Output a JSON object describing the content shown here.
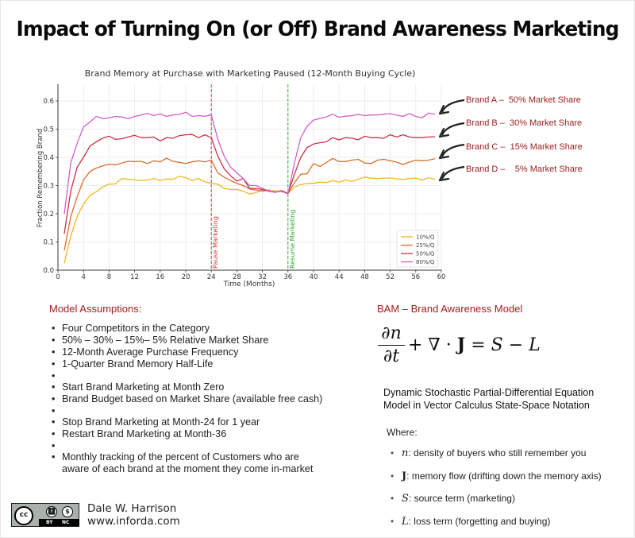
{
  "page": {
    "title": "Impact of Turning On (or Off) Brand Awareness Marketing"
  },
  "chart_data": {
    "type": "line",
    "title": "Brand Memory at Purchase with Marketing Paused (12-Month Buying Cycle)",
    "xlabel": "Time (Months)",
    "ylabel": "Fraction Remembering Brand",
    "xlim": [
      0,
      60
    ],
    "ylim": [
      0.0,
      0.66
    ],
    "xticks": [
      0,
      4,
      8,
      12,
      16,
      20,
      24,
      28,
      32,
      36,
      40,
      44,
      48,
      52,
      56,
      60
    ],
    "yticks": [
      0.0,
      0.1,
      0.2,
      0.3,
      0.4,
      0.5,
      0.6
    ],
    "ytick_labels": [
      "0.0",
      "0.1",
      "0.2",
      "0.3",
      "0.4",
      "0.5",
      "0.6"
    ],
    "grid": true,
    "legend_position": "lower right",
    "x": [
      1,
      2,
      3,
      4,
      5,
      6,
      7,
      8,
      9,
      10,
      11,
      12,
      13,
      14,
      15,
      16,
      17,
      18,
      19,
      20,
      21,
      22,
      23,
      24,
      25,
      26,
      27,
      28,
      29,
      30,
      31,
      32,
      33,
      34,
      35,
      36,
      37,
      38,
      39,
      40,
      41,
      42,
      43,
      44,
      45,
      46,
      47,
      48,
      49,
      50,
      51,
      52,
      53,
      54,
      55,
      56,
      57,
      58,
      59
    ],
    "series": [
      {
        "name": "10%/Q",
        "color": "#f2b824",
        "values": [
          0.025,
          0.12,
          0.19,
          0.235,
          0.265,
          0.278,
          0.295,
          0.305,
          0.306,
          0.325,
          0.322,
          0.32,
          0.318,
          0.32,
          0.325,
          0.318,
          0.323,
          0.322,
          0.333,
          0.328,
          0.318,
          0.325,
          0.313,
          0.308,
          0.305,
          0.29,
          0.286,
          0.286,
          0.28,
          0.27,
          0.275,
          0.285,
          0.28,
          0.282,
          0.278,
          0.272,
          0.295,
          0.303,
          0.308,
          0.308,
          0.312,
          0.31,
          0.318,
          0.312,
          0.32,
          0.315,
          0.322,
          0.33,
          0.326,
          0.325,
          0.326,
          0.327,
          0.324,
          0.322,
          0.325,
          0.326,
          0.32,
          0.328,
          0.322
        ]
      },
      {
        "name": "25%/Q",
        "color": "#dc6d2c",
        "values": [
          0.07,
          0.19,
          0.26,
          0.32,
          0.35,
          0.362,
          0.37,
          0.376,
          0.373,
          0.38,
          0.386,
          0.385,
          0.386,
          0.378,
          0.388,
          0.384,
          0.397,
          0.386,
          0.382,
          0.378,
          0.384,
          0.388,
          0.384,
          0.39,
          0.345,
          0.33,
          0.318,
          0.308,
          0.3,
          0.288,
          0.284,
          0.28,
          0.284,
          0.277,
          0.281,
          0.272,
          0.31,
          0.34,
          0.342,
          0.378,
          0.368,
          0.382,
          0.396,
          0.385,
          0.385,
          0.39,
          0.393,
          0.38,
          0.378,
          0.39,
          0.393,
          0.388,
          0.383,
          0.375,
          0.383,
          0.39,
          0.388,
          0.39,
          0.395
        ]
      },
      {
        "name": "50%/Q",
        "color": "#cc3148",
        "values": [
          0.13,
          0.28,
          0.365,
          0.4,
          0.44,
          0.455,
          0.468,
          0.475,
          0.464,
          0.466,
          0.472,
          0.478,
          0.47,
          0.47,
          0.472,
          0.458,
          0.47,
          0.468,
          0.477,
          0.48,
          0.481,
          0.47,
          0.48,
          0.47,
          0.405,
          0.36,
          0.335,
          0.316,
          0.325,
          0.29,
          0.29,
          0.286,
          0.28,
          0.276,
          0.282,
          0.272,
          0.34,
          0.4,
          0.435,
          0.447,
          0.452,
          0.455,
          0.47,
          0.462,
          0.47,
          0.468,
          0.462,
          0.475,
          0.47,
          0.47,
          0.468,
          0.48,
          0.472,
          0.48,
          0.472,
          0.47,
          0.47,
          0.472,
          0.473
        ]
      },
      {
        "name": "80%/Q",
        "color": "#d35fc8",
        "values": [
          0.2,
          0.38,
          0.45,
          0.508,
          0.525,
          0.545,
          0.537,
          0.54,
          0.545,
          0.543,
          0.537,
          0.545,
          0.55,
          0.556,
          0.548,
          0.554,
          0.545,
          0.55,
          0.552,
          0.56,
          0.545,
          0.548,
          0.546,
          0.55,
          0.465,
          0.405,
          0.365,
          0.345,
          0.325,
          0.3,
          0.3,
          0.29,
          0.281,
          0.277,
          0.28,
          0.27,
          0.38,
          0.47,
          0.51,
          0.532,
          0.538,
          0.543,
          0.553,
          0.542,
          0.546,
          0.548,
          0.552,
          0.548,
          0.55,
          0.55,
          0.553,
          0.555,
          0.55,
          0.545,
          0.555,
          0.545,
          0.54,
          0.557,
          0.552
        ]
      }
    ],
    "annotations": [
      {
        "x": 24,
        "label": "Pause Marketing",
        "color": "#d43a3a",
        "style": "dashed"
      },
      {
        "x": 36,
        "label": "Resume Marketing",
        "color": "#3aa83a",
        "style": "dashed"
      }
    ],
    "callouts": [
      {
        "label": "Brand A –  50% Market Share",
        "series": "80%/Q"
      },
      {
        "label": "Brand B –  30% Market Share",
        "series": "50%/Q"
      },
      {
        "label": "Brand C –  15% Market Share",
        "series": "25%/Q"
      },
      {
        "label": "Brand D –    5% Market Share",
        "series": "10%/Q"
      }
    ]
  },
  "assumptions": {
    "title": "Model Assumptions:",
    "groups": [
      [
        "Four Competitors in the Category",
        "50% – 30% – 15%– 5% Relative Market Share",
        "12-Month Average Purchase Frequency",
        "1-Quarter Brand Memory Half-Life"
      ],
      [
        "Start Brand Marketing at Month Zero",
        "Brand Budget based on Market Share (available free cash)"
      ],
      [
        "Stop Brand Marketing at Month-24 for 1 year",
        "Restart Brand Marketing at Month-36"
      ],
      [
        "Monthly tracking of the percent of Customers who are",
        "aware of each brand at the moment they come in-market"
      ]
    ]
  },
  "model": {
    "title": "BAM – Brand Awareness Model",
    "equation": {
      "numerator": "∂n",
      "denominator": "∂t",
      "plus": "+ ∇ · ",
      "J": "J",
      "equals": " = ",
      "S": "S",
      "minus": " − ",
      "L": "L"
    },
    "description_line1": "Dynamic Stochastic Partial-Differential Equation",
    "description_line2": "Model in Vector Calculus State-Space Notation",
    "where_label": "Where:",
    "terms": [
      {
        "symbol": "n",
        "text": ": density of buyers who still remember you"
      },
      {
        "symbol": "J",
        "text": ": memory flow (drifting down the memory axis)"
      },
      {
        "symbol": "S",
        "text": ": source term (marketing)"
      },
      {
        "symbol": "L",
        "text": ": loss term (forgetting and buying)"
      }
    ]
  },
  "footer": {
    "license": {
      "cc": "cc",
      "by": "BY",
      "nc": "NC"
    },
    "author": "Dale W. Harrison",
    "website": "www.inforda.com"
  }
}
